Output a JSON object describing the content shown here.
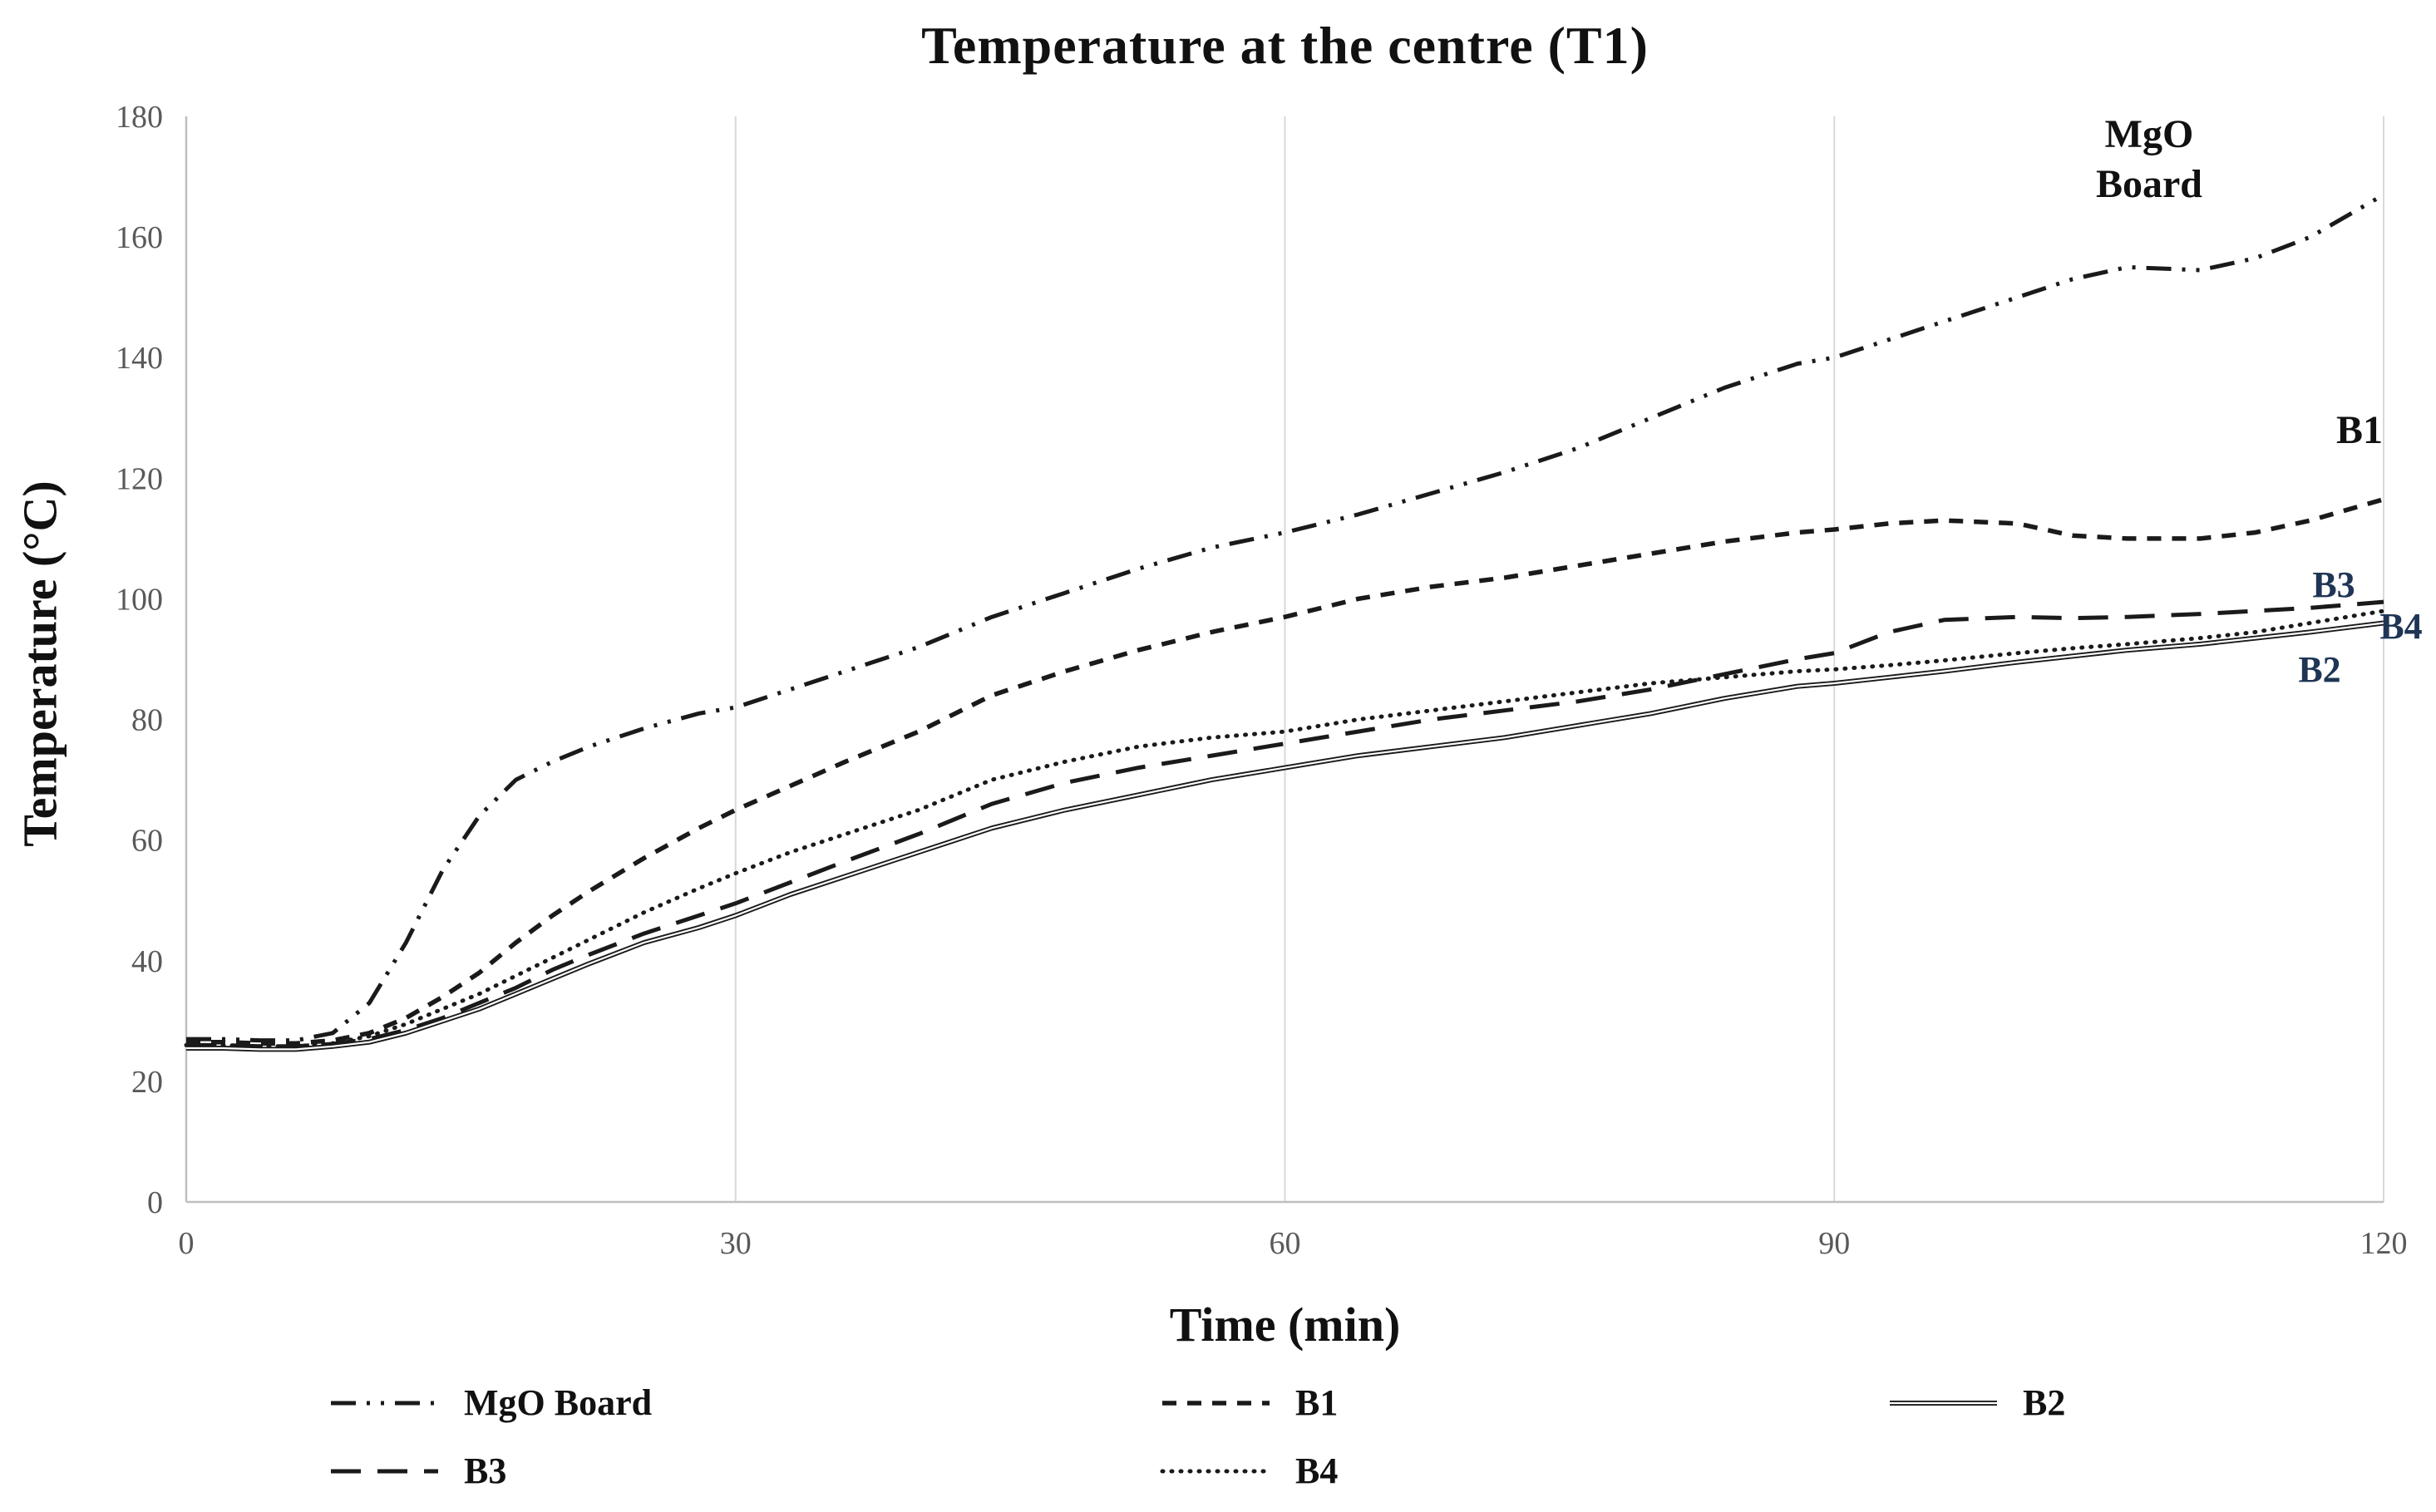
{
  "page": {
    "background": "#ffffff"
  },
  "chart": {
    "title": "Temperature at the centre (T1)",
    "x_label": "Time (min)",
    "y_label": "Temperature (°C)",
    "tick_color": "#595959",
    "gridline_color": "#d9d9d9",
    "axis_color": "#bfbfbf",
    "series_color": "#1a1a1a",
    "annotation_black": "#111111",
    "annotation_navy": "#1f3555"
  },
  "annotations": {
    "mgo_line1": "MgO",
    "mgo_line2": "Board",
    "b1": "B1",
    "b3": "B3",
    "b4": "B4",
    "b2": "B2"
  },
  "legend": {
    "items": [
      {
        "label": "MgO Board",
        "style": "dash-dot-dot"
      },
      {
        "label": "B1",
        "style": "dashed"
      },
      {
        "label": "B2",
        "style": "solid-double"
      },
      {
        "label": "B3",
        "style": "long-dash"
      },
      {
        "label": "B4",
        "style": "dotted"
      }
    ]
  },
  "chart_data": {
    "type": "line",
    "title": "Temperature at the centre (T1)",
    "xlabel": "Time (min)",
    "ylabel": "Temperature (°C)",
    "xlim": [
      0,
      120
    ],
    "ylim": [
      0,
      180
    ],
    "x_ticks": [
      0,
      30,
      60,
      90,
      120
    ],
    "y_ticks": [
      0,
      20,
      40,
      60,
      80,
      100,
      120,
      140,
      160,
      180
    ],
    "grid": "vertical-only",
    "legend_position": "bottom",
    "x": [
      0,
      2,
      4,
      6,
      8,
      10,
      12,
      14,
      16,
      18,
      20,
      22,
      25,
      28,
      30,
      33,
      36,
      40,
      44,
      48,
      52,
      56,
      60,
      64,
      68,
      72,
      76,
      80,
      84,
      88,
      90,
      93,
      96,
      100,
      103,
      106,
      110,
      113,
      116,
      120
    ],
    "series": [
      {
        "name": "MgO Board",
        "style": "dash-dot-dot",
        "values": [
          27,
          27,
          26.8,
          26.8,
          28,
          33,
          43,
          55,
          64,
          70,
          73,
          75.5,
          78.5,
          81,
          82,
          85,
          88,
          92,
          97,
          101,
          105,
          108.5,
          111,
          114,
          117.5,
          121,
          125,
          130,
          135,
          139,
          140,
          143,
          146,
          150,
          153,
          155,
          154.5,
          156.5,
          160,
          167
        ]
      },
      {
        "name": "B1",
        "style": "dashed",
        "values": [
          26.5,
          26.5,
          26.3,
          26.3,
          26.8,
          28,
          30.5,
          34,
          38,
          43,
          47.5,
          51.5,
          57,
          62,
          65,
          69,
          73,
          78,
          84,
          88,
          91.5,
          94.5,
          97,
          100,
          102,
          103.5,
          105.5,
          107.5,
          109.5,
          111,
          111.5,
          112.5,
          113,
          112.5,
          110.5,
          110,
          110,
          111,
          113,
          116.5
        ]
      },
      {
        "name": "B4",
        "style": "dotted",
        "values": [
          26,
          26,
          25.8,
          25.8,
          26.3,
          27.5,
          29.5,
          32,
          34.5,
          37.5,
          40.5,
          43.5,
          48,
          52,
          54.5,
          58,
          61,
          65,
          70,
          73,
          75.5,
          77,
          78,
          80,
          81.5,
          83,
          84.5,
          86,
          87,
          88,
          88.3,
          89,
          89.8,
          91,
          91.8,
          92.5,
          93.5,
          94.5,
          96,
          98
        ]
      },
      {
        "name": "B3",
        "style": "long-dash",
        "values": [
          26,
          26,
          25.8,
          25.8,
          26.2,
          27,
          28.5,
          30.5,
          33,
          35.5,
          38.5,
          41,
          44.5,
          47.5,
          49.5,
          53,
          56.5,
          61,
          66,
          69.5,
          72,
          74,
          76,
          78,
          80,
          81.5,
          83,
          85,
          87.5,
          90,
          91,
          94.5,
          96.5,
          97,
          96.8,
          97,
          97.5,
          98,
          98.5,
          99.5
        ]
      },
      {
        "name": "B2",
        "style": "solid-double",
        "values": [
          25.5,
          25.5,
          25.3,
          25.3,
          25.8,
          26.5,
          28,
          30,
          32,
          34.5,
          37,
          39.5,
          43,
          45.5,
          47.5,
          51,
          54,
          58,
          62,
          65,
          67.5,
          70,
          72,
          74,
          75.5,
          77,
          79,
          81,
          83.5,
          85.5,
          86,
          87,
          88,
          89.5,
          90.5,
          91.5,
          92.5,
          93.5,
          94.5,
          96
        ]
      }
    ]
  }
}
